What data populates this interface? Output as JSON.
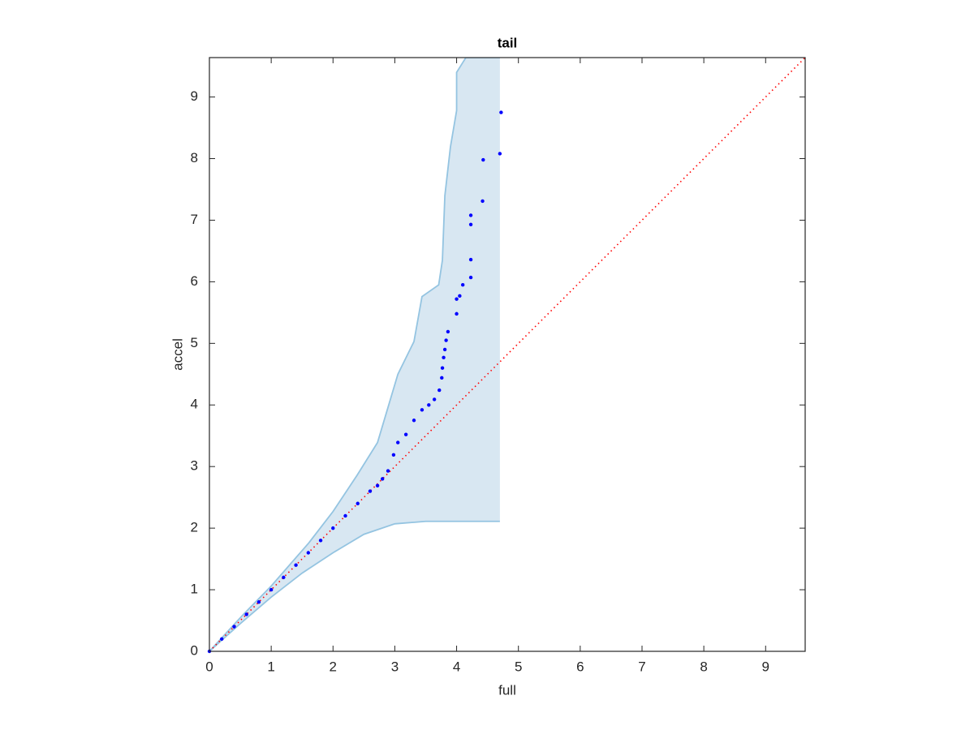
{
  "chart_data": {
    "type": "scatter",
    "title": "tail",
    "x_label": "full",
    "y_label": "accel",
    "xlim": [
      0,
      9.64
    ],
    "ylim": [
      0,
      9.64
    ],
    "xticks": [
      0,
      1,
      2,
      3,
      4,
      5,
      6,
      7,
      8,
      9
    ],
    "yticks": [
      0,
      1,
      2,
      3,
      4,
      5,
      6,
      7,
      8,
      9
    ],
    "series": [
      {
        "color": "#0000ff",
        "x": [
          0,
          0.2,
          0.4,
          0.6,
          0.8,
          1.0,
          1.2,
          1.4,
          1.6,
          1.8,
          2.0,
          2.2,
          2.4,
          2.6,
          2.72,
          2.8,
          2.89,
          2.98,
          3.05,
          3.18,
          3.31,
          3.44,
          3.55,
          3.64,
          3.72,
          3.76,
          3.77,
          3.79,
          3.81,
          3.83,
          3.86,
          4.0,
          4.0,
          4.05,
          4.1,
          4.23,
          4.23,
          4.23,
          4.23,
          4.42,
          4.43,
          4.7,
          4.72
        ],
        "y": [
          0,
          0.2,
          0.4,
          0.6,
          0.8,
          1.0,
          1.2,
          1.4,
          1.6,
          1.8,
          2.0,
          2.2,
          2.4,
          2.6,
          2.69,
          2.8,
          2.93,
          3.19,
          3.39,
          3.52,
          3.75,
          3.92,
          4.0,
          4.09,
          4.24,
          4.44,
          4.6,
          4.77,
          4.9,
          5.05,
          5.19,
          5.48,
          5.72,
          5.77,
          5.95,
          6.07,
          6.36,
          6.93,
          7.08,
          7.31,
          7.98,
          8.08,
          8.75
        ]
      }
    ],
    "band_upper": {
      "color": "#94c4e1",
      "x": [
        0,
        0.55,
        1.0,
        1.6,
        2.0,
        2.39,
        2.72,
        3.05,
        3.31,
        3.44,
        3.71,
        3.77,
        3.81,
        3.9,
        4.0,
        4.0,
        4.1,
        4.15,
        4.7
      ],
      "y": [
        0,
        0.6,
        1.06,
        1.75,
        2.27,
        2.86,
        3.39,
        4.5,
        5.03,
        5.76,
        5.95,
        6.35,
        7.4,
        8.19,
        8.78,
        9.4,
        9.56,
        9.64,
        9.64
      ]
    },
    "band_lower": {
      "color": "#94c4e1",
      "x": [
        0,
        0.5,
        1.0,
        1.5,
        2.0,
        2.5,
        3.0,
        3.5,
        4.7
      ],
      "y": [
        0,
        0.45,
        0.88,
        1.27,
        1.6,
        1.9,
        2.07,
        2.11,
        2.11
      ]
    },
    "band_fill": "#d8e7f2",
    "reference": {
      "color": "#ff0000",
      "x": [
        0,
        9.64
      ],
      "y": [
        0,
        9.64
      ]
    }
  }
}
